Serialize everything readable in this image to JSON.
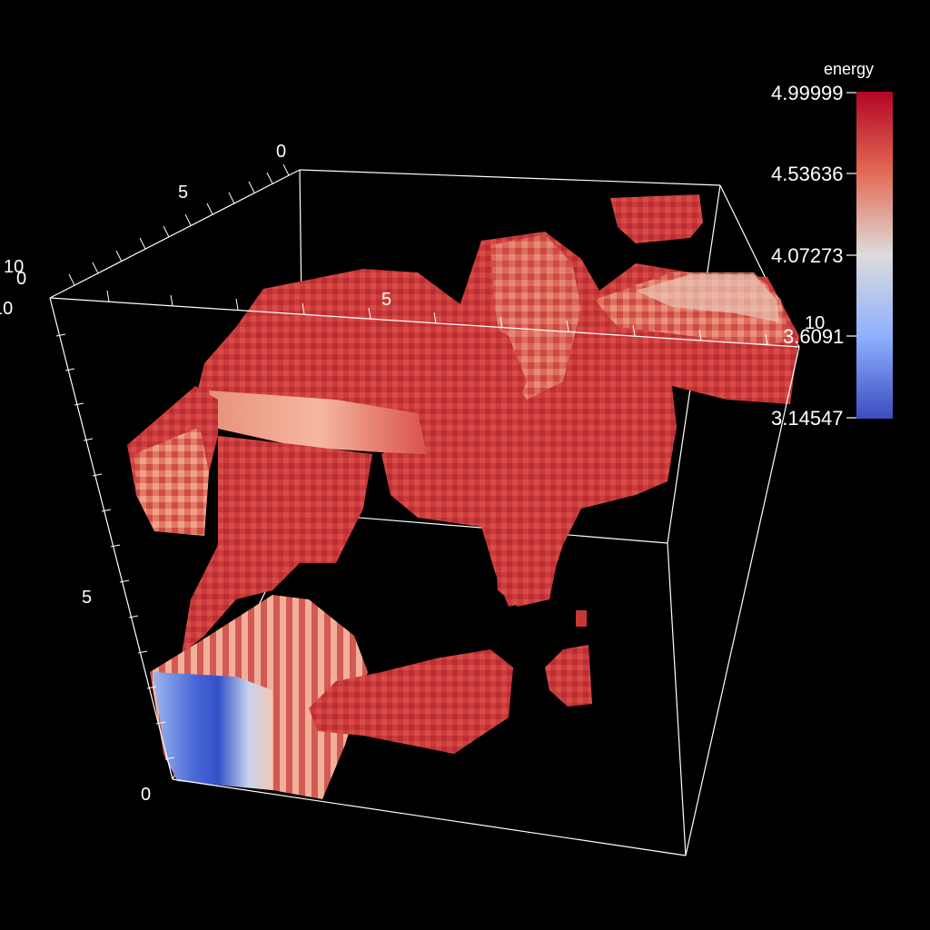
{
  "colorbar": {
    "title": "energy",
    "labels": [
      "4.99999",
      "4.53636",
      "4.07273",
      "3.6091",
      "3.14547"
    ],
    "range": [
      3.14547,
      4.99999
    ],
    "colormap": [
      "#b40426",
      "#f7a889",
      "#dddcdc",
      "#aac7fd",
      "#3b4cc0"
    ]
  },
  "axes": {
    "top_left_labels": [
      "0",
      "5",
      "10"
    ],
    "top_front_labels": [
      "0",
      "5",
      "10"
    ],
    "vertical_labels": [
      "5",
      "0"
    ],
    "box_color": "#ffffff"
  },
  "colors": {
    "background": "#000000",
    "voxel_dark": "#b52a30",
    "voxel_mid": "#d9524b",
    "voxel_light": "#f2a58c",
    "voxel_pale": "#e8c9bc",
    "voxel_blue": "#3f5ccf"
  }
}
